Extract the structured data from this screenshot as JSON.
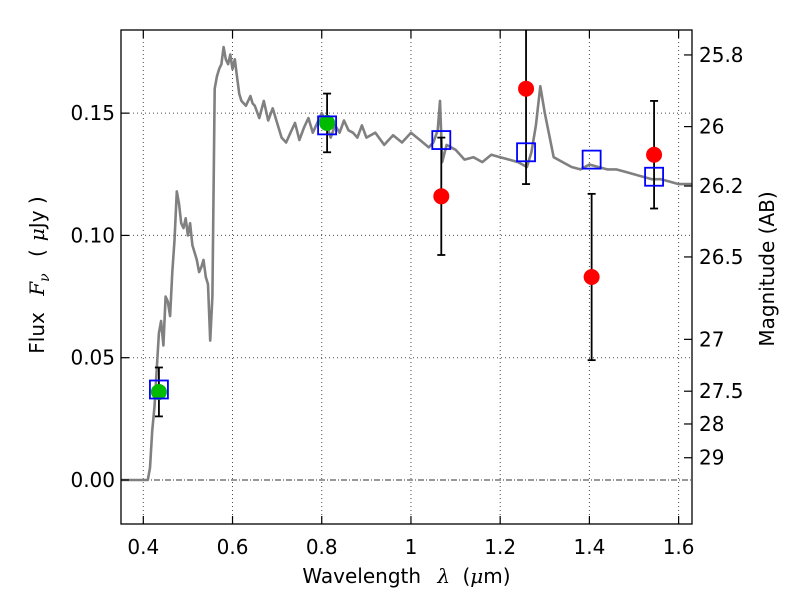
{
  "chart_data": {
    "type": "scatter",
    "xlabel_prefix": "Wavelength",
    "xlabel_symbol": "λ",
    "xlabel_unit_open": "(",
    "xlabel_unit_mu": "μ",
    "xlabel_unit_rest": "m)",
    "ylabel_prefix": "Flux",
    "ylabel_symbol": "F",
    "ylabel_sub": "ν",
    "ylabel_unit_open": "(",
    "ylabel_unit_mu": "μ",
    "ylabel_unit_rest": "Jy )",
    "y2label": "Magnitude (AB)",
    "xlim": [
      0.35,
      1.63
    ],
    "ylim": [
      -0.018,
      0.184
    ],
    "xticks": [
      0.4,
      0.6,
      0.8,
      1.0,
      1.2,
      1.4,
      1.6
    ],
    "xtick_labels": [
      "0.4",
      "0.6",
      "0.8",
      "1",
      "1.2",
      "1.4",
      "1.6"
    ],
    "yticks": [
      0.0,
      0.05,
      0.1,
      0.15
    ],
    "ytick_labels": [
      "0.00",
      "0.05",
      "0.10",
      "0.15"
    ],
    "mag_ticks": [
      {
        "label": "25.8",
        "flux": 0.1738
      },
      {
        "label": "26",
        "flux": 0.1445
      },
      {
        "label": "26.2",
        "flux": 0.1202
      },
      {
        "label": "26.5",
        "flux": 0.0912
      },
      {
        "label": "27",
        "flux": 0.0575
      },
      {
        "label": "27.5",
        "flux": 0.0363
      },
      {
        "label": "28",
        "flux": 0.0229
      },
      {
        "label": "29",
        "flux": 0.0091
      }
    ],
    "grid": true,
    "colors": {
      "model": "#808080",
      "green_point": "#00bb00",
      "red_point": "#ff0000",
      "model_box": "#0000ff",
      "error_bar": "#000000"
    },
    "model_sed": {
      "x": [
        0.35,
        0.41,
        0.415,
        0.42,
        0.425,
        0.43,
        0.435,
        0.44,
        0.445,
        0.45,
        0.455,
        0.46,
        0.465,
        0.47,
        0.475,
        0.48,
        0.485,
        0.49,
        0.495,
        0.5,
        0.505,
        0.51,
        0.515,
        0.52,
        0.525,
        0.53,
        0.535,
        0.54,
        0.545,
        0.55,
        0.555,
        0.56,
        0.565,
        0.57,
        0.575,
        0.58,
        0.585,
        0.59,
        0.595,
        0.6,
        0.605,
        0.61,
        0.615,
        0.62,
        0.63,
        0.64,
        0.645,
        0.65,
        0.66,
        0.67,
        0.68,
        0.69,
        0.7,
        0.71,
        0.72,
        0.73,
        0.74,
        0.75,
        0.76,
        0.77,
        0.78,
        0.79,
        0.8,
        0.81,
        0.82,
        0.83,
        0.84,
        0.85,
        0.86,
        0.87,
        0.88,
        0.89,
        0.9,
        0.92,
        0.94,
        0.96,
        0.98,
        1.0,
        1.02,
        1.04,
        1.05,
        1.06,
        1.065,
        1.07,
        1.08,
        1.1,
        1.12,
        1.14,
        1.16,
        1.18,
        1.2,
        1.22,
        1.24,
        1.26,
        1.27,
        1.28,
        1.29,
        1.3,
        1.32,
        1.34,
        1.36,
        1.38,
        1.4,
        1.42,
        1.44,
        1.46,
        1.48,
        1.5,
        1.52,
        1.54,
        1.56,
        1.58,
        1.6,
        1.63
      ],
      "y": [
        0.0,
        0.0,
        0.005,
        0.02,
        0.03,
        0.045,
        0.06,
        0.065,
        0.055,
        0.075,
        0.073,
        0.067,
        0.085,
        0.098,
        0.118,
        0.113,
        0.105,
        0.103,
        0.107,
        0.1,
        0.105,
        0.096,
        0.093,
        0.09,
        0.085,
        0.087,
        0.09,
        0.083,
        0.08,
        0.057,
        0.075,
        0.16,
        0.165,
        0.168,
        0.17,
        0.177,
        0.172,
        0.17,
        0.174,
        0.168,
        0.172,
        0.165,
        0.158,
        0.155,
        0.153,
        0.157,
        0.154,
        0.153,
        0.148,
        0.155,
        0.147,
        0.152,
        0.146,
        0.14,
        0.138,
        0.142,
        0.146,
        0.139,
        0.144,
        0.148,
        0.142,
        0.146,
        0.15,
        0.146,
        0.14,
        0.145,
        0.142,
        0.147,
        0.143,
        0.142,
        0.14,
        0.145,
        0.14,
        0.142,
        0.137,
        0.141,
        0.138,
        0.142,
        0.139,
        0.136,
        0.138,
        0.143,
        0.155,
        0.13,
        0.137,
        0.135,
        0.131,
        0.132,
        0.13,
        0.133,
        0.132,
        0.131,
        0.13,
        0.128,
        0.134,
        0.145,
        0.161,
        0.15,
        0.132,
        0.13,
        0.128,
        0.127,
        0.129,
        0.128,
        0.127,
        0.127,
        0.126,
        0.125,
        0.124,
        0.123,
        0.123,
        0.122,
        0.121,
        0.121
      ]
    },
    "series": [
      {
        "marker": "green-circle",
        "points": [
          {
            "x": 0.435,
            "y": 0.036,
            "err": 0.01
          },
          {
            "x": 0.812,
            "y": 0.146,
            "err": 0.012
          }
        ]
      },
      {
        "marker": "red-circle",
        "points": [
          {
            "x": 1.068,
            "y": 0.116,
            "err": 0.024
          },
          {
            "x": 1.258,
            "y": 0.16,
            "err": 0.039
          },
          {
            "x": 1.405,
            "y": 0.083,
            "err": 0.034
          },
          {
            "x": 1.545,
            "y": 0.133,
            "err": 0.022
          }
        ]
      },
      {
        "marker": "blue-square",
        "points": [
          {
            "x": 0.435,
            "y": 0.037
          },
          {
            "x": 0.812,
            "y": 0.145
          },
          {
            "x": 1.068,
            "y": 0.139
          },
          {
            "x": 1.258,
            "y": 0.134
          },
          {
            "x": 1.405,
            "y": 0.131
          },
          {
            "x": 1.545,
            "y": 0.124
          }
        ]
      }
    ]
  }
}
